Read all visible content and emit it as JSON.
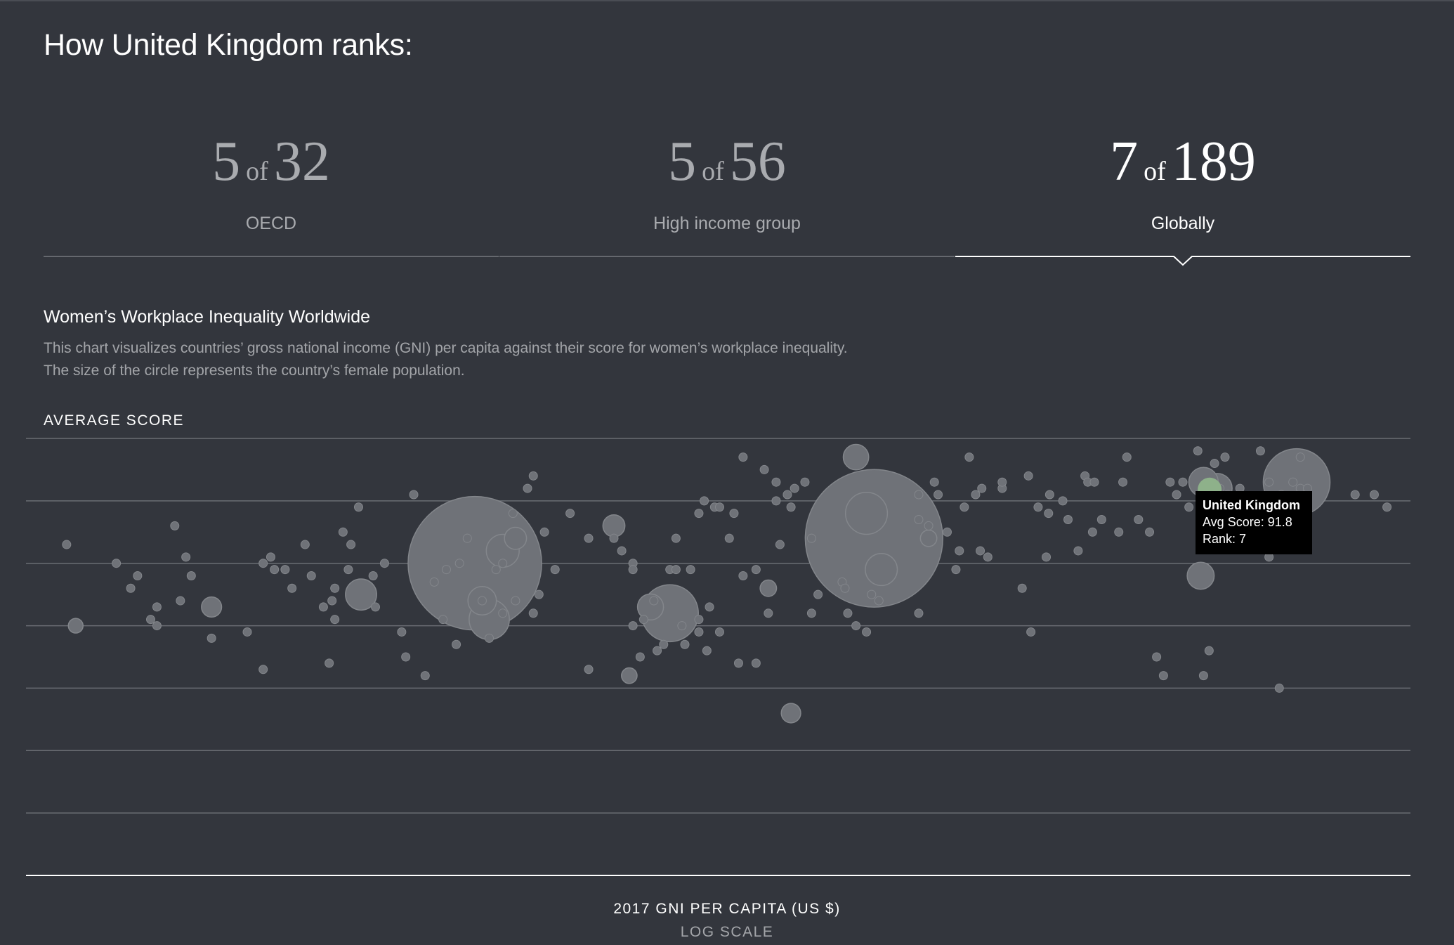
{
  "page_title": "How United Kingdom ranks:",
  "tabs": [
    {
      "rank": "5",
      "of": "of",
      "total": "32",
      "label": "OECD",
      "active": false
    },
    {
      "rank": "5",
      "of": "of",
      "total": "56",
      "label": "High income group",
      "active": false
    },
    {
      "rank": "7",
      "of": "of",
      "total": "189",
      "label": "Globally",
      "active": true
    }
  ],
  "chart": {
    "title": "Women’s Workplace Inequality Worldwide",
    "description_line1": "This chart visualizes countries’ gross national income (GNI) per capita against their score for women’s workplace inequality.",
    "description_line2": "The size of the circle represents the country’s female population.",
    "y_axis_label": "AVERAGE SCORE",
    "x_axis_label": "2017 GNI PER CAPITA (US $)",
    "x_axis_sublabel": "LOG SCALE"
  },
  "tooltip": {
    "name": "United Kingdom",
    "score_text": "Avg Score: 91.8",
    "rank_text": "Rank: 7"
  },
  "colors": {
    "background": "#33363d",
    "bubble": "#6f7278",
    "bubble_outline": "#83868b",
    "highlight": "#8eb18a",
    "gridline": "#6a6d73",
    "tooltip_bg": "#000000"
  },
  "chart_data": {
    "type": "scatter",
    "title": "Women’s Workplace Inequality Worldwide",
    "xlabel": "2017 GNI PER CAPITA (US $)",
    "ylabel": "AVERAGE SCORE",
    "x_scale": "log",
    "xlim": [
      200,
      100000
    ],
    "ylim": [
      30,
      100
    ],
    "y_grid_step": 10,
    "grid": true,
    "highlight": {
      "name": "United Kingdom",
      "x": 40600,
      "y": 91.8,
      "pop_m": 33.2
    },
    "points": [
      [
        240,
        83
      ],
      [
        330,
        78
      ],
      [
        320,
        76
      ],
      [
        300,
        80
      ],
      [
        360,
        73
      ],
      [
        350,
        71
      ],
      [
        390,
        86
      ],
      [
        360,
        70
      ],
      [
        410,
        81
      ],
      [
        400,
        74
      ],
      [
        420,
        78
      ],
      [
        460,
        68
      ],
      [
        540,
        69
      ],
      [
        580,
        80
      ],
      [
        600,
        81
      ],
      [
        580,
        63
      ],
      [
        610,
        79
      ],
      [
        640,
        79
      ],
      [
        660,
        76
      ],
      [
        700,
        83
      ],
      [
        720,
        78
      ],
      [
        780,
        64
      ],
      [
        760,
        73
      ],
      [
        790,
        74
      ],
      [
        800,
        71
      ],
      [
        800,
        76
      ],
      [
        830,
        85
      ],
      [
        850,
        79
      ],
      [
        860,
        83
      ],
      [
        890,
        89
      ],
      [
        950,
        78
      ],
      [
        960,
        73
      ],
      [
        1000,
        80
      ],
      [
        1100,
        65
      ],
      [
        1080,
        69
      ],
      [
        1140,
        91
      ],
      [
        1200,
        62
      ],
      [
        1250,
        77
      ],
      [
        1300,
        71
      ],
      [
        1320,
        79
      ],
      [
        1400,
        80
      ],
      [
        1380,
        67
      ],
      [
        1450,
        84
      ],
      [
        1550,
        74
      ],
      [
        1600,
        68
      ],
      [
        1650,
        79
      ],
      [
        1700,
        80
      ],
      [
        1700,
        72
      ],
      [
        1780,
        88
      ],
      [
        1800,
        74
      ],
      [
        1900,
        92
      ],
      [
        1950,
        94
      ],
      [
        1950,
        72
      ],
      [
        2000,
        75
      ],
      [
        2050,
        85
      ],
      [
        2150,
        79
      ],
      [
        2300,
        88
      ],
      [
        2500,
        63
      ],
      [
        2500,
        84
      ],
      [
        2800,
        84
      ],
      [
        2900,
        82
      ],
      [
        3050,
        80
      ],
      [
        3050,
        79
      ],
      [
        3050,
        70
      ],
      [
        3150,
        65
      ],
      [
        3200,
        71
      ],
      [
        3350,
        74
      ],
      [
        3400,
        66
      ],
      [
        3500,
        67
      ],
      [
        3600,
        79
      ],
      [
        3700,
        84
      ],
      [
        3700,
        79
      ],
      [
        3800,
        70
      ],
      [
        3850,
        67
      ],
      [
        3950,
        79
      ],
      [
        4100,
        69
      ],
      [
        4100,
        88
      ],
      [
        4100,
        71
      ],
      [
        4200,
        90
      ],
      [
        4250,
        66
      ],
      [
        4300,
        73
      ],
      [
        4400,
        89
      ],
      [
        4500,
        89
      ],
      [
        4500,
        69
      ],
      [
        4700,
        84
      ],
      [
        4800,
        88
      ],
      [
        4900,
        64
      ],
      [
        5000,
        97
      ],
      [
        5000,
        78
      ],
      [
        5300,
        64
      ],
      [
        5300,
        79
      ],
      [
        5500,
        95
      ],
      [
        5600,
        72
      ],
      [
        5800,
        93
      ],
      [
        5900,
        83
      ],
      [
        5800,
        90
      ],
      [
        6100,
        91
      ],
      [
        6300,
        92
      ],
      [
        6200,
        89
      ],
      [
        6600,
        93
      ],
      [
        7000,
        75
      ],
      [
        6800,
        84
      ],
      [
        6800,
        72
      ],
      [
        7800,
        77
      ],
      [
        8000,
        72
      ],
      [
        7900,
        76
      ],
      [
        8300,
        70
      ],
      [
        8700,
        69
      ],
      [
        8900,
        75
      ],
      [
        9200,
        74
      ],
      [
        11000,
        72
      ],
      [
        11000,
        87
      ],
      [
        11000,
        91
      ],
      [
        11500,
        86
      ],
      [
        11800,
        93
      ],
      [
        12000,
        91
      ],
      [
        12500,
        85
      ],
      [
        13000,
        79
      ],
      [
        13200,
        82
      ],
      [
        13500,
        89
      ],
      [
        13800,
        97
      ],
      [
        14200,
        91
      ],
      [
        14500,
        82
      ],
      [
        14600,
        92
      ],
      [
        15000,
        81
      ],
      [
        16000,
        92
      ],
      [
        16000,
        93
      ],
      [
        17500,
        76
      ],
      [
        18000,
        94
      ],
      [
        18200,
        69
      ],
      [
        18800,
        89
      ],
      [
        19500,
        81
      ],
      [
        19800,
        91
      ],
      [
        19700,
        88
      ],
      [
        21000,
        90
      ],
      [
        21500,
        87
      ],
      [
        22500,
        82
      ],
      [
        23200,
        94
      ],
      [
        23500,
        93
      ],
      [
        24000,
        85
      ],
      [
        24200,
        93
      ],
      [
        25000,
        87
      ],
      [
        27000,
        85
      ],
      [
        28000,
        97
      ],
      [
        27500,
        93
      ],
      [
        29500,
        87
      ],
      [
        31000,
        85
      ],
      [
        32000,
        65
      ],
      [
        33000,
        62
      ],
      [
        34000,
        93
      ],
      [
        35000,
        91
      ],
      [
        36000,
        93
      ],
      [
        37000,
        89
      ],
      [
        38500,
        98
      ],
      [
        39500,
        62
      ],
      [
        40500,
        66
      ],
      [
        41500,
        96
      ],
      [
        42500,
        92
      ],
      [
        43500,
        97
      ],
      [
        44000,
        91
      ],
      [
        46500,
        92
      ],
      [
        49000,
        89
      ],
      [
        51000,
        98
      ],
      [
        53000,
        93
      ],
      [
        53000,
        81
      ],
      [
        55500,
        60
      ],
      [
        56000,
        91
      ],
      [
        59000,
        93
      ],
      [
        61000,
        92
      ],
      [
        61000,
        97
      ],
      [
        63000,
        92
      ],
      [
        78000,
        91
      ],
      [
        85000,
        91
      ],
      [
        90000,
        89
      ]
    ],
    "big_bubbles": [
      {
        "x": 1500,
        "y": 80,
        "pop_m": 660
      },
      {
        "x": 900,
        "y": 75,
        "pop_m": 36
      },
      {
        "x": 1700,
        "y": 82,
        "pop_m": 40
      },
      {
        "x": 1800,
        "y": 84,
        "pop_m": 18
      },
      {
        "x": 1600,
        "y": 71,
        "pop_m": 60
      },
      {
        "x": 1550,
        "y": 74,
        "pop_m": 30
      },
      {
        "x": 3600,
        "y": 72,
        "pop_m": 120
      },
      {
        "x": 3300,
        "y": 73,
        "pop_m": 25
      },
      {
        "x": 9000,
        "y": 84,
        "pop_m": 700
      },
      {
        "x": 8700,
        "y": 88,
        "pop_m": 65
      },
      {
        "x": 8300,
        "y": 97,
        "pop_m": 24
      },
      {
        "x": 9300,
        "y": 79,
        "pop_m": 38
      },
      {
        "x": 2800,
        "y": 86,
        "pop_m": 18
      },
      {
        "x": 460,
        "y": 73,
        "pop_m": 15
      },
      {
        "x": 250,
        "y": 70,
        "pop_m": 8
      },
      {
        "x": 11500,
        "y": 84,
        "pop_m": 10
      },
      {
        "x": 6200,
        "y": 56,
        "pop_m": 14
      },
      {
        "x": 5600,
        "y": 76,
        "pop_m": 10
      },
      {
        "x": 60000,
        "y": 93,
        "pop_m": 165
      },
      {
        "x": 42000,
        "y": 92,
        "pop_m": 33
      },
      {
        "x": 39500,
        "y": 93,
        "pop_m": 32
      },
      {
        "x": 39000,
        "y": 78,
        "pop_m": 27
      },
      {
        "x": 3000,
        "y": 62,
        "pop_m": 9
      }
    ]
  }
}
